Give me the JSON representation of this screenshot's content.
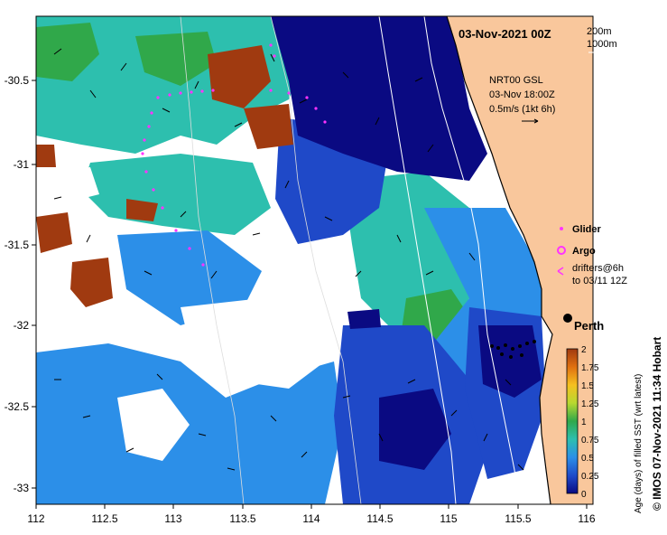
{
  "title": "03-Nov-2021 00Z",
  "depth_legend": {
    "line1": "200m",
    "line2": "1000m"
  },
  "current_info": {
    "line1": "NRT00 GSL",
    "line2": "03-Nov 18:00Z",
    "line3": "0.5m/s (1kt 6h)"
  },
  "symbol_legend": {
    "glider": "Glider",
    "argo": "Argo",
    "drifters_line1": "drifters@6h",
    "drifters_line2": "to 03/11 12Z"
  },
  "city_label": "Perth",
  "credit": "© IMOS 07-Nov-2021 11:34 Hobart",
  "colorbar": {
    "label": "Age (days) of filled SST (wrt latest)",
    "ticks": [
      "0",
      "0.25",
      "0.5",
      "0.75",
      "1",
      "1.25",
      "1.5",
      "1.75",
      "2"
    ]
  },
  "axes": {
    "x_ticks": [
      "112",
      "112.5",
      "113",
      "113.5",
      "114",
      "114.5",
      "115",
      "115.5",
      "116"
    ],
    "y_ticks": [
      "-30.5",
      "-31",
      "-31.5",
      "-32",
      "-32.5",
      "-33"
    ],
    "lon_range": [
      112,
      116.2
    ],
    "lat_range": [
      -33.15,
      -30.05
    ]
  },
  "colors": {
    "land": "#f9c79c",
    "deep_navy": "#0a0a82",
    "blue": "#1f49c8",
    "light_blue": "#2c8fe8",
    "teal": "#2dbfae",
    "green": "#30a84a",
    "brown": "#a03a10",
    "glider": "#ff33ff"
  }
}
